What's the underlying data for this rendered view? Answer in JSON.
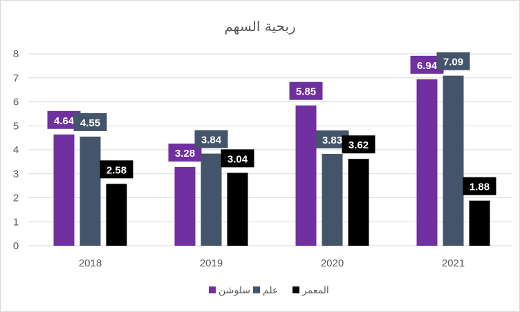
{
  "chart_data": {
    "type": "bar",
    "title": "ربحية السهم",
    "categories": [
      "2018",
      "2019",
      "2020",
      "2021"
    ],
    "series": [
      {
        "name": "سلوشن",
        "color": "#7030a0",
        "values": [
          4.64,
          3.28,
          5.85,
          6.94
        ]
      },
      {
        "name": "علم",
        "color": "#44546a",
        "values": [
          4.55,
          3.84,
          3.83,
          7.09
        ]
      },
      {
        "name": "المعمر",
        "color": "#000000",
        "values": [
          2.58,
          3.04,
          3.62,
          1.88
        ]
      }
    ],
    "ylim": [
      0,
      8
    ],
    "yticks": [
      0,
      1,
      2,
      3,
      4,
      5,
      6,
      7,
      8
    ],
    "grid": true,
    "legend": "bottom",
    "xlabel": "",
    "ylabel": ""
  }
}
